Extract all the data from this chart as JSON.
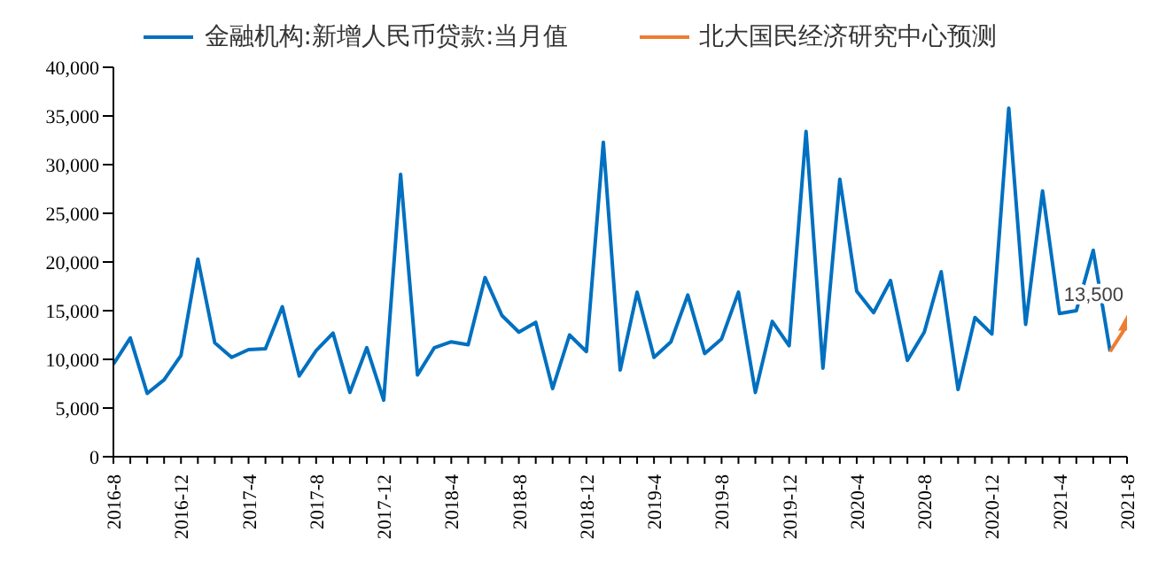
{
  "chart_data": {
    "type": "line",
    "categories": [
      "2016-8",
      null,
      null,
      null,
      "2016-12",
      null,
      null,
      null,
      "2017-4",
      null,
      null,
      null,
      "2017-8",
      null,
      null,
      null,
      "2017-12",
      null,
      null,
      null,
      "2018-4",
      null,
      null,
      null,
      "2018-8",
      null,
      null,
      null,
      "2018-12",
      null,
      null,
      null,
      "2019-4",
      null,
      null,
      null,
      "2019-8",
      null,
      null,
      null,
      "2019-12",
      null,
      null,
      null,
      "2020-4",
      null,
      null,
      null,
      "2020-8",
      null,
      null,
      null,
      "2020-12",
      null,
      null,
      null,
      "2021-4",
      null,
      null,
      null,
      "2021-8"
    ],
    "series": [
      {
        "name": "金融机构:新增人民币贷款:当月值",
        "color": "#0070c0",
        "values": [
          9500,
          12200,
          6500,
          7900,
          10400,
          20300,
          11700,
          10200,
          11000,
          11100,
          15400,
          8300,
          10900,
          12700,
          6600,
          11200,
          5800,
          29000,
          8400,
          11200,
          11800,
          11500,
          18400,
          14500,
          12800,
          13800,
          7000,
          12500,
          10800,
          32300,
          8900,
          16900,
          10200,
          11800,
          16600,
          10600,
          12100,
          16900,
          6600,
          13900,
          11400,
          33400,
          9100,
          28500,
          17000,
          14800,
          18100,
          9900,
          12800,
          19000,
          6900,
          14300,
          12600,
          35800,
          13600,
          27300,
          14700,
          15000,
          21200,
          10800,
          null
        ]
      },
      {
        "name": "北大国民经济研究中心预测",
        "color": "#ed7d31",
        "marker": "triangle",
        "values": [
          null,
          null,
          null,
          null,
          null,
          null,
          null,
          null,
          null,
          null,
          null,
          null,
          null,
          null,
          null,
          null,
          null,
          null,
          null,
          null,
          null,
          null,
          null,
          null,
          null,
          null,
          null,
          null,
          null,
          null,
          null,
          null,
          null,
          null,
          null,
          null,
          null,
          null,
          null,
          null,
          null,
          null,
          null,
          null,
          null,
          null,
          null,
          null,
          null,
          null,
          null,
          null,
          null,
          null,
          null,
          null,
          null,
          null,
          null,
          10800,
          13500
        ],
        "value_labels": [
          null,
          null,
          null,
          null,
          null,
          null,
          null,
          null,
          null,
          null,
          null,
          null,
          null,
          null,
          null,
          null,
          null,
          null,
          null,
          null,
          null,
          null,
          null,
          null,
          null,
          null,
          null,
          null,
          null,
          null,
          null,
          null,
          null,
          null,
          null,
          null,
          null,
          null,
          null,
          null,
          null,
          null,
          null,
          null,
          null,
          null,
          null,
          null,
          null,
          null,
          null,
          null,
          null,
          null,
          null,
          null,
          null,
          null,
          null,
          null,
          "13,500"
        ]
      }
    ],
    "ylim": [
      0,
      40000
    ],
    "yticks": [
      {
        "value": 0,
        "label": "0"
      },
      {
        "value": 5000,
        "label": "5,000"
      },
      {
        "value": 10000,
        "label": "10,000"
      },
      {
        "value": 15000,
        "label": "15,000"
      },
      {
        "value": 20000,
        "label": "20,000"
      },
      {
        "value": 25000,
        "label": "25,000"
      },
      {
        "value": 30000,
        "label": "30,000"
      },
      {
        "value": 35000,
        "label": "35,000"
      },
      {
        "value": 40000,
        "label": "40,000"
      }
    ],
    "legend": "top",
    "grid": false
  }
}
